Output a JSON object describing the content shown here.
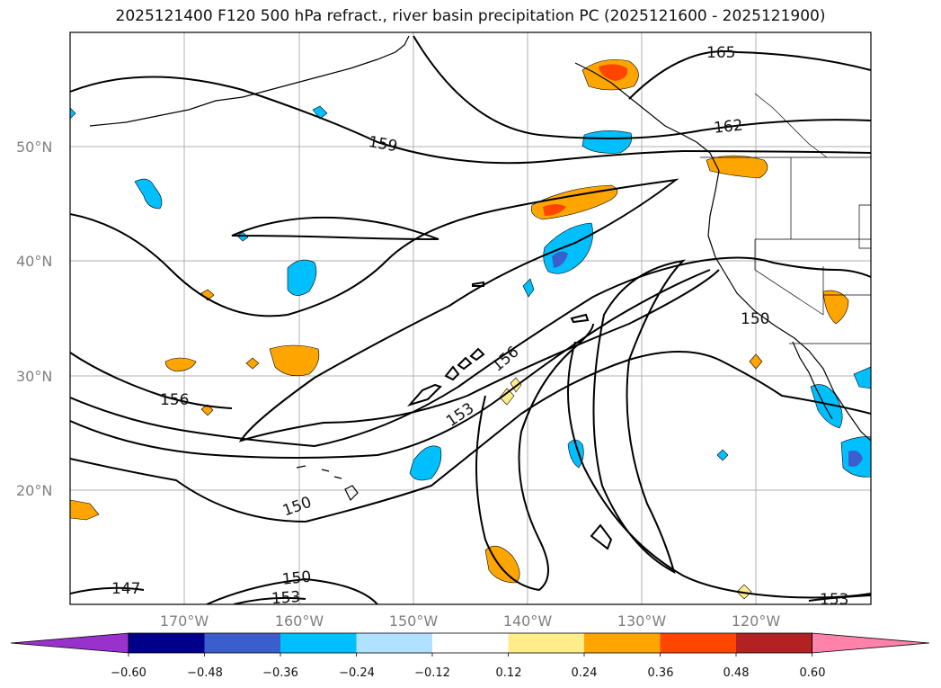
{
  "title": "2025121400 F120 500 hPa refract., river basin precipitation PC (2025121600 - 2025121900)",
  "map": {
    "lat_labels": [
      "50°N",
      "40°N",
      "30°N",
      "20°N"
    ],
    "lon_labels": [
      "170°W",
      "160°W",
      "150°W",
      "140°W",
      "130°W",
      "120°W"
    ],
    "contour_labels": [
      "165",
      "162",
      "159",
      "156",
      "156",
      "153",
      "150",
      "150",
      "150",
      "147",
      "153",
      "153"
    ]
  },
  "colorbar": {
    "ticks": [
      "−0.60",
      "−0.48",
      "−0.36",
      "−0.24",
      "−0.12",
      "0.12",
      "0.24",
      "0.36",
      "0.48",
      "0.60"
    ],
    "colors": [
      "#9932cc",
      "#00008b",
      "#3a5fcd",
      "#00bfff",
      "#b0e2ff",
      "#ffffff",
      "#ffec8b",
      "#ffa500",
      "#ff4500",
      "#b22222",
      "#ff82ab"
    ]
  }
}
